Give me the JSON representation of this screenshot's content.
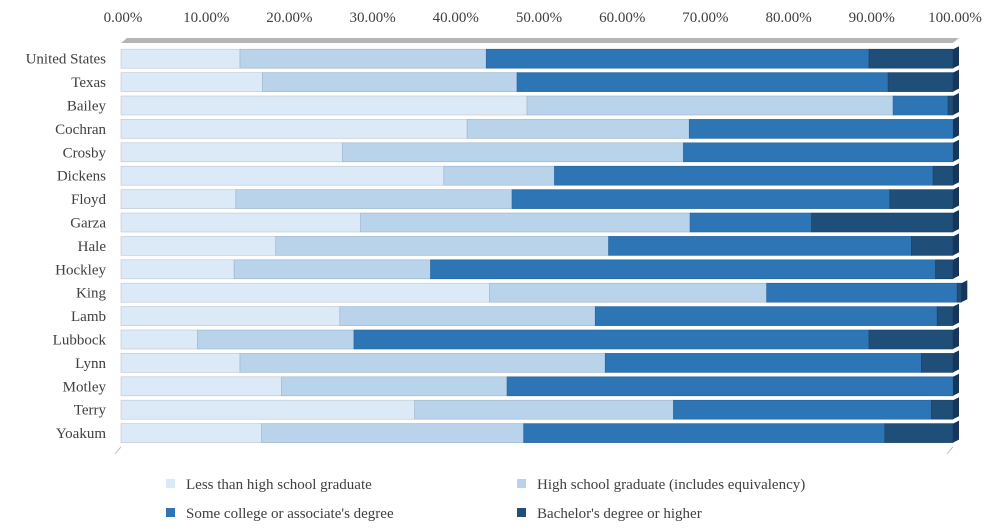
{
  "chart_data": {
    "type": "bar",
    "orientation": "horizontal",
    "stacked": true,
    "percent": true,
    "title": "",
    "xlabel": "",
    "ylabel": "",
    "xlim": [
      0,
      1
    ],
    "x_ticks": [
      "0.00%",
      "10.00%",
      "20.00%",
      "30.00%",
      "40.00%",
      "50.00%",
      "60.00%",
      "70.00%",
      "80.00%",
      "90.00%",
      "100.00%"
    ],
    "x_axis_position": "top",
    "grid": false,
    "legend_position": "bottom",
    "categories": [
      "United States",
      "Texas",
      "Bailey",
      "Cochran",
      "Crosby",
      "Dickens",
      "Floyd",
      "Garza",
      "Hale",
      "Hockley",
      "King",
      "Lamb",
      "Lubbock",
      "Lynn",
      "Motley",
      "Terry",
      "Yoakum"
    ],
    "series": [
      {
        "name": "Less than high school graduate",
        "color": "#dce9f6",
        "values": [
          0.143,
          0.17,
          0.488,
          0.416,
          0.266,
          0.388,
          0.138,
          0.288,
          0.186,
          0.136,
          0.443,
          0.263,
          0.092,
          0.143,
          0.193,
          0.353,
          0.169
        ]
      },
      {
        "name": "High school graduate (includes equivalency)",
        "color": "#b8d3ea",
        "values": [
          0.296,
          0.306,
          0.44,
          0.267,
          0.41,
          0.133,
          0.332,
          0.396,
          0.4,
          0.236,
          0.333,
          0.307,
          0.188,
          0.439,
          0.271,
          0.311,
          0.315
        ]
      },
      {
        "name": "Some college or associate's degree",
        "color": "#2e75b6",
        "values": [
          0.46,
          0.446,
          0.066,
          0.317,
          0.324,
          0.455,
          0.454,
          0.146,
          0.364,
          0.607,
          0.229,
          0.411,
          0.619,
          0.38,
          0.536,
          0.31,
          0.434
        ]
      },
      {
        "name": "Bachelor's degree or higher",
        "color": "#1f4e79",
        "values": [
          0.101,
          0.078,
          0.006,
          0.0,
          0.0,
          0.024,
          0.076,
          0.17,
          0.05,
          0.021,
          0.005,
          0.019,
          0.101,
          0.038,
          0.0,
          0.026,
          0.082
        ]
      }
    ]
  }
}
